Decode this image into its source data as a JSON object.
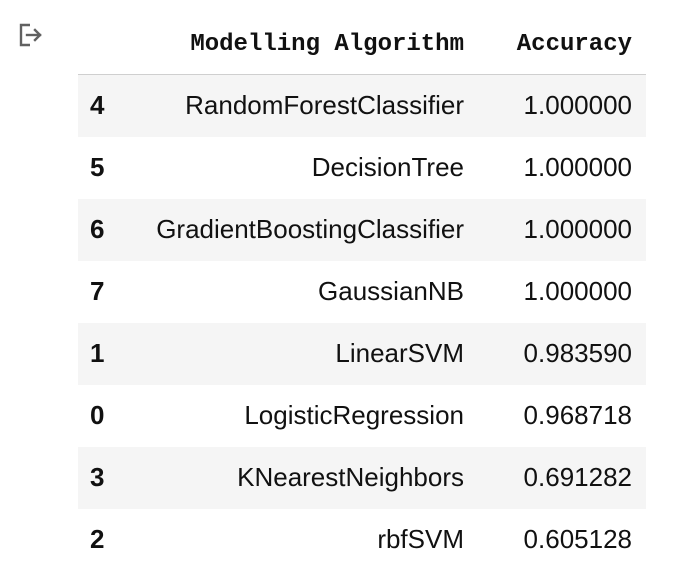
{
  "output": {
    "icon": "output-redirect-icon"
  },
  "table": {
    "columns": [
      "Modelling Algorithm",
      "Accuracy"
    ],
    "rows": [
      {
        "index": "4",
        "algorithm": "RandomForestClassifier",
        "accuracy": "1.000000"
      },
      {
        "index": "5",
        "algorithm": "DecisionTree",
        "accuracy": "1.000000"
      },
      {
        "index": "6",
        "algorithm": "GradientBoostingClassifier",
        "accuracy": "1.000000"
      },
      {
        "index": "7",
        "algorithm": "GaussianNB",
        "accuracy": "1.000000"
      },
      {
        "index": "1",
        "algorithm": "LinearSVM",
        "accuracy": "0.983590"
      },
      {
        "index": "0",
        "algorithm": "LogisticRegression",
        "accuracy": "0.968718"
      },
      {
        "index": "3",
        "algorithm": "KNearestNeighbors",
        "accuracy": "0.691282"
      },
      {
        "index": "2",
        "algorithm": "rbfSVM",
        "accuracy": "0.605128"
      }
    ]
  }
}
